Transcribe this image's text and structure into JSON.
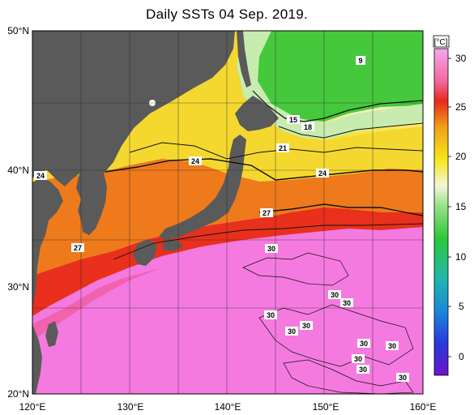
{
  "title": "Daily SSTs 04 Sep. 2019.",
  "axes": {
    "lat_labels": [
      "50°N",
      "40°N",
      "30°N",
      "20°N"
    ],
    "lon_labels": [
      "120°E",
      "130°E",
      "140°E",
      "150°E",
      "160°E"
    ]
  },
  "colorbar": {
    "unit": "[°C]",
    "ticks": [
      "30",
      "25",
      "20",
      "15",
      "10",
      "5",
      "0"
    ]
  },
  "contour_labels": {
    "c9": "9",
    "c15": "15",
    "c18": "18",
    "c21": "21",
    "c24a": "24",
    "c24b": "24",
    "c24c": "24",
    "c27a": "27",
    "c27b": "27",
    "c30a": "30",
    "c30b": "30",
    "c30c": "30",
    "c30d": "30",
    "c30e": "30",
    "c30f": "30",
    "c30g": "30",
    "c30h": "30",
    "c30i": "30",
    "c30j": "30",
    "c30k": "30"
  },
  "colors": {
    "land": "#5a5a5a",
    "pink_warm": "#f47ae0",
    "red": "#e8281c",
    "orange": "#f07a18",
    "yellow": "#f6e01a",
    "green": "#46c83c"
  }
}
